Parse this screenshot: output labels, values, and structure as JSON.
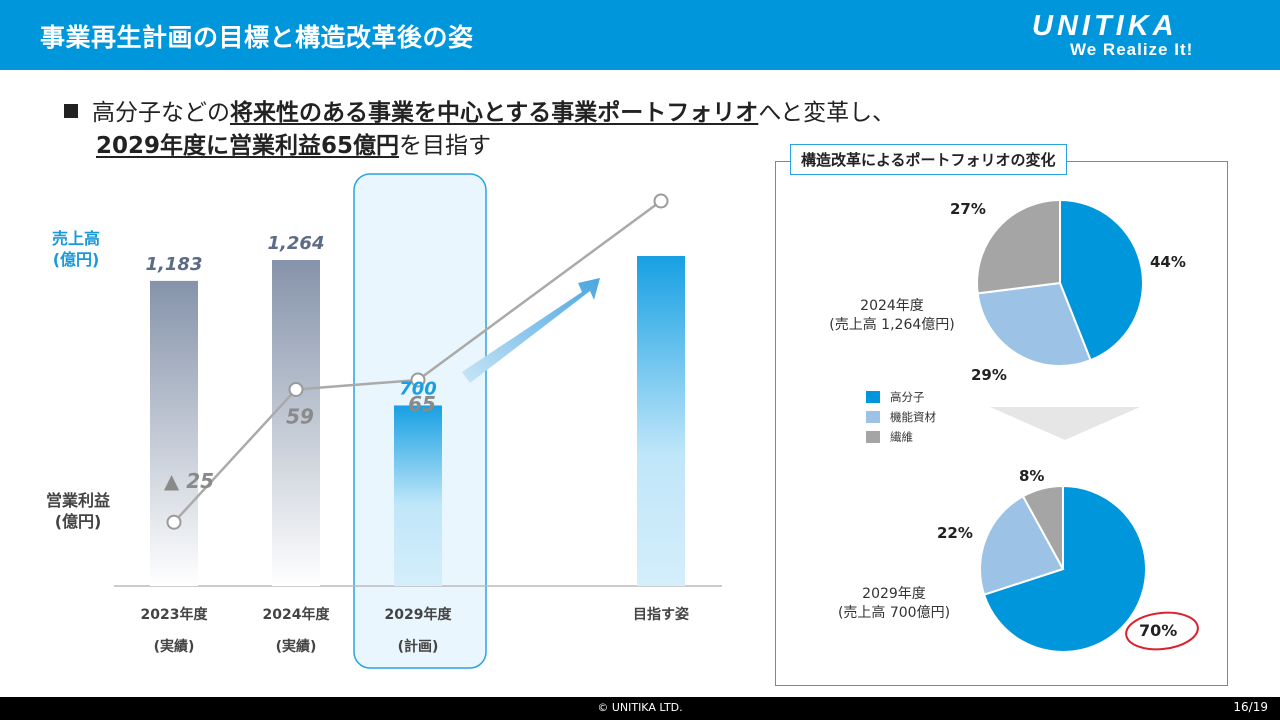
{
  "header": {
    "title": "事業再生計画の目標と構造改革後の姿",
    "logo_name": "UNITIKA",
    "logo_tagline": "We Realize It!"
  },
  "lead": {
    "line1_pre": "高分子などの",
    "line1_em": "将来性のある事業を中心とする事業ポートフォリオ",
    "line1_post": "へと変革し、",
    "line2_em": "2029年度に営業利益65億円",
    "line2_post": "を目指す"
  },
  "chart_data": {
    "type": "bar",
    "categories": [
      "2023年度",
      "2024年度",
      "2029年度",
      "目指す姿"
    ],
    "category_notes": [
      "(実績)",
      "(実績)",
      "(計画)",
      ""
    ],
    "series": [
      {
        "name": "売上高",
        "values": [
          1183,
          1264,
          700,
          null
        ],
        "value_labels": [
          "1,183",
          "1,264",
          "700",
          ""
        ]
      },
      {
        "name": "営業利益",
        "values": [
          -25,
          59,
          65,
          null
        ],
        "value_labels": [
          "▲ 25",
          "59",
          "65",
          ""
        ]
      }
    ],
    "sales_label": "売上高\n(億円)",
    "profit_label": "営業利益\n(億円)",
    "highlight_category": "2029年度",
    "colors": {
      "sales_past": "#8593aa",
      "sales_plan": "#17a0e3",
      "profit_line": "#aaaaaa"
    }
  },
  "labels": {
    "sales_line1": "売上高",
    "sales_line2": "(億円)",
    "profit_line1": "営業利益",
    "profit_line2": "(億円)"
  },
  "portfolio": {
    "title": "構造改革によるポートフォリオの変化",
    "legend": [
      {
        "name": "高分子",
        "color": "#0096db"
      },
      {
        "name": "機能資材",
        "color": "#9cc3e6"
      },
      {
        "name": "繊維",
        "color": "#a5a5a5"
      }
    ],
    "pie_2024": {
      "caption_line1": "2024年度",
      "caption_line2": "(売上高 1,264億円)",
      "values": [
        44,
        29,
        27
      ],
      "labels": [
        "44%",
        "29%",
        "27%"
      ]
    },
    "pie_2029": {
      "caption_line1": "2029年度",
      "caption_line2": "(売上高 700億円)",
      "values": [
        70,
        22,
        8
      ],
      "labels": [
        "70%",
        "22%",
        "8%"
      ],
      "circled_label": "70%"
    }
  },
  "footer": {
    "copyright": "© UNITIKA LTD.",
    "page": "16/19"
  }
}
